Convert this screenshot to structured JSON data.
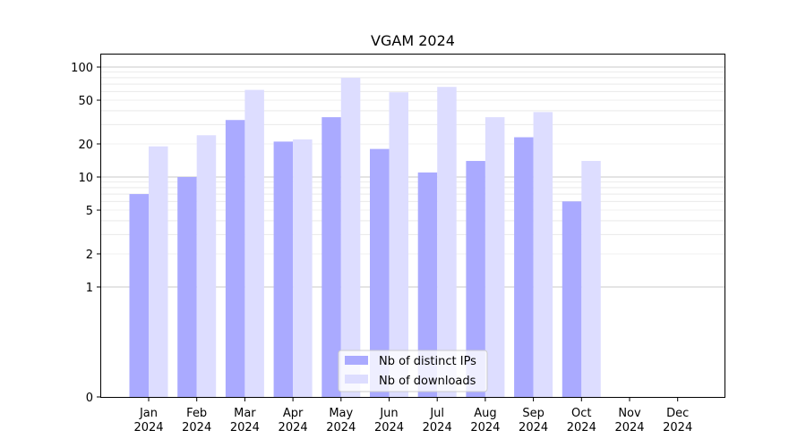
{
  "chart_data": {
    "type": "bar",
    "title": "VGAM 2024",
    "xlabel": "",
    "ylabel": "",
    "yscale": "symlog",
    "ylim": [
      0,
      130
    ],
    "yticks": [
      0,
      1,
      2,
      5,
      10,
      20,
      50,
      100
    ],
    "ytick_labels": [
      "0",
      "1",
      "2",
      "5",
      "10",
      "20",
      "50",
      "100"
    ],
    "categories": [
      {
        "month": "Jan",
        "year": "2024"
      },
      {
        "month": "Feb",
        "year": "2024"
      },
      {
        "month": "Mar",
        "year": "2024"
      },
      {
        "month": "Apr",
        "year": "2024"
      },
      {
        "month": "May",
        "year": "2024"
      },
      {
        "month": "Jun",
        "year": "2024"
      },
      {
        "month": "Jul",
        "year": "2024"
      },
      {
        "month": "Aug",
        "year": "2024"
      },
      {
        "month": "Sep",
        "year": "2024"
      },
      {
        "month": "Oct",
        "year": "2024"
      },
      {
        "month": "Nov",
        "year": "2024"
      },
      {
        "month": "Dec",
        "year": "2024"
      }
    ],
    "series": [
      {
        "name": "Nb of distinct IPs",
        "color": "#aaaaff",
        "values": [
          7,
          10,
          33,
          21,
          35,
          18,
          11,
          14,
          23,
          6,
          0,
          0
        ]
      },
      {
        "name": "Nb of downloads",
        "color": "#ddddff",
        "values": [
          19,
          24,
          62,
          22,
          80,
          59,
          66,
          35,
          39,
          14,
          0,
          0
        ]
      }
    ],
    "legend_position": "lower-center",
    "grid": true
  }
}
